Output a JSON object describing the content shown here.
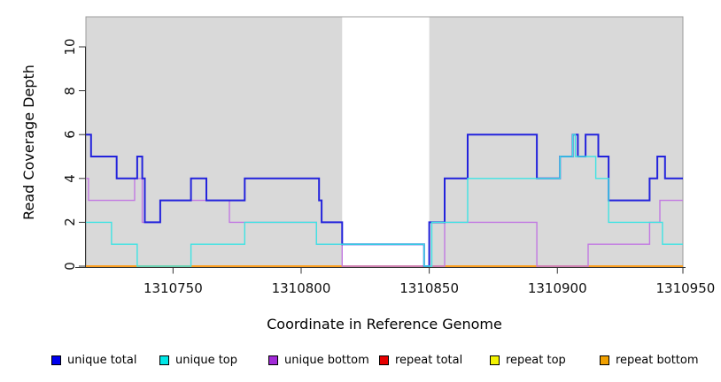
{
  "figure": {
    "x_axis": {
      "label": "Coordinate in Reference Genome",
      "ticks": [
        1310750,
        1310800,
        1310850,
        1310900,
        1310950
      ]
    },
    "y_axis": {
      "label": "Read Coverage Depth",
      "ticks": [
        0,
        2,
        4,
        6,
        8,
        10
      ]
    },
    "chart_data": {
      "type": "line",
      "subtype": "step-after",
      "xlim": [
        1310716,
        1310949
      ],
      "ylim": [
        0,
        11.4
      ],
      "grid": false,
      "plot_bg_color": "#d9d9d9",
      "plot_border_color": "#9c9c9c",
      "axis_color": "#333333",
      "gap_region": {
        "x_start": 1310816,
        "x_end": 1310850,
        "color": "#ffffff"
      },
      "series": [
        {
          "name": "unique total",
          "color": "#2323dc",
          "legend_color": "#0000ee",
          "width": 2,
          "points": [
            [
              1310716,
              6
            ],
            [
              1310718,
              5
            ],
            [
              1310728,
              4
            ],
            [
              1310736,
              5
            ],
            [
              1310738,
              4
            ],
            [
              1310739,
              2
            ],
            [
              1310745,
              3
            ],
            [
              1310757,
              4
            ],
            [
              1310763,
              3
            ],
            [
              1310778,
              4
            ],
            [
              1310807,
              3
            ],
            [
              1310808,
              2
            ],
            [
              1310816,
              1
            ],
            [
              1310848,
              0
            ],
            [
              1310850,
              2
            ],
            [
              1310856,
              4
            ],
            [
              1310865,
              6
            ],
            [
              1310892,
              4
            ],
            [
              1310901,
              5
            ],
            [
              1310906,
              6
            ],
            [
              1310908,
              5
            ],
            [
              1310911,
              6
            ],
            [
              1310916,
              5
            ],
            [
              1310920,
              3
            ],
            [
              1310936,
              4
            ],
            [
              1310939,
              5
            ],
            [
              1310942,
              4
            ]
          ]
        },
        {
          "name": "unique top",
          "color": "#3fe3e3",
          "legend_color": "#00e6e6",
          "width": 1.4,
          "points": [
            [
              1310716,
              2
            ],
            [
              1310726,
              1
            ],
            [
              1310736,
              0
            ],
            [
              1310757,
              1
            ],
            [
              1310778,
              2
            ],
            [
              1310806,
              1
            ],
            [
              1310848,
              0
            ],
            [
              1310851,
              2
            ],
            [
              1310865,
              4
            ],
            [
              1310901,
              5
            ],
            [
              1310906,
              6
            ],
            [
              1310907,
              5
            ],
            [
              1310915,
              4
            ],
            [
              1310920,
              2
            ],
            [
              1310941,
              1
            ]
          ]
        },
        {
          "name": "unique bottom",
          "color": "#c279e2",
          "legend_color": "#a22ad8",
          "width": 1.4,
          "points": [
            [
              1310716,
              4
            ],
            [
              1310717,
              3
            ],
            [
              1310735,
              4
            ],
            [
              1310738,
              2
            ],
            [
              1310745,
              3
            ],
            [
              1310772,
              2
            ],
            [
              1310806,
              1
            ],
            [
              1310816,
              0
            ],
            [
              1310856,
              2
            ],
            [
              1310892,
              0
            ],
            [
              1310912,
              1
            ],
            [
              1310936,
              2
            ],
            [
              1310940,
              3
            ]
          ]
        },
        {
          "name": "repeat total",
          "color": "#e00000",
          "legend_color": "#e60000",
          "width": 1.4,
          "points": [
            [
              1310716,
              0
            ]
          ]
        },
        {
          "name": "repeat top",
          "color": "#f0f000",
          "legend_color": "#f2f200",
          "width": 1.4,
          "points": [
            [
              1310716,
              0
            ]
          ]
        },
        {
          "name": "repeat bottom",
          "color": "#ff9d1e",
          "legend_color": "#f0a000",
          "width": 1.8,
          "points": [
            [
              1310716,
              0
            ]
          ]
        }
      ],
      "legend_position": "bottom"
    }
  }
}
